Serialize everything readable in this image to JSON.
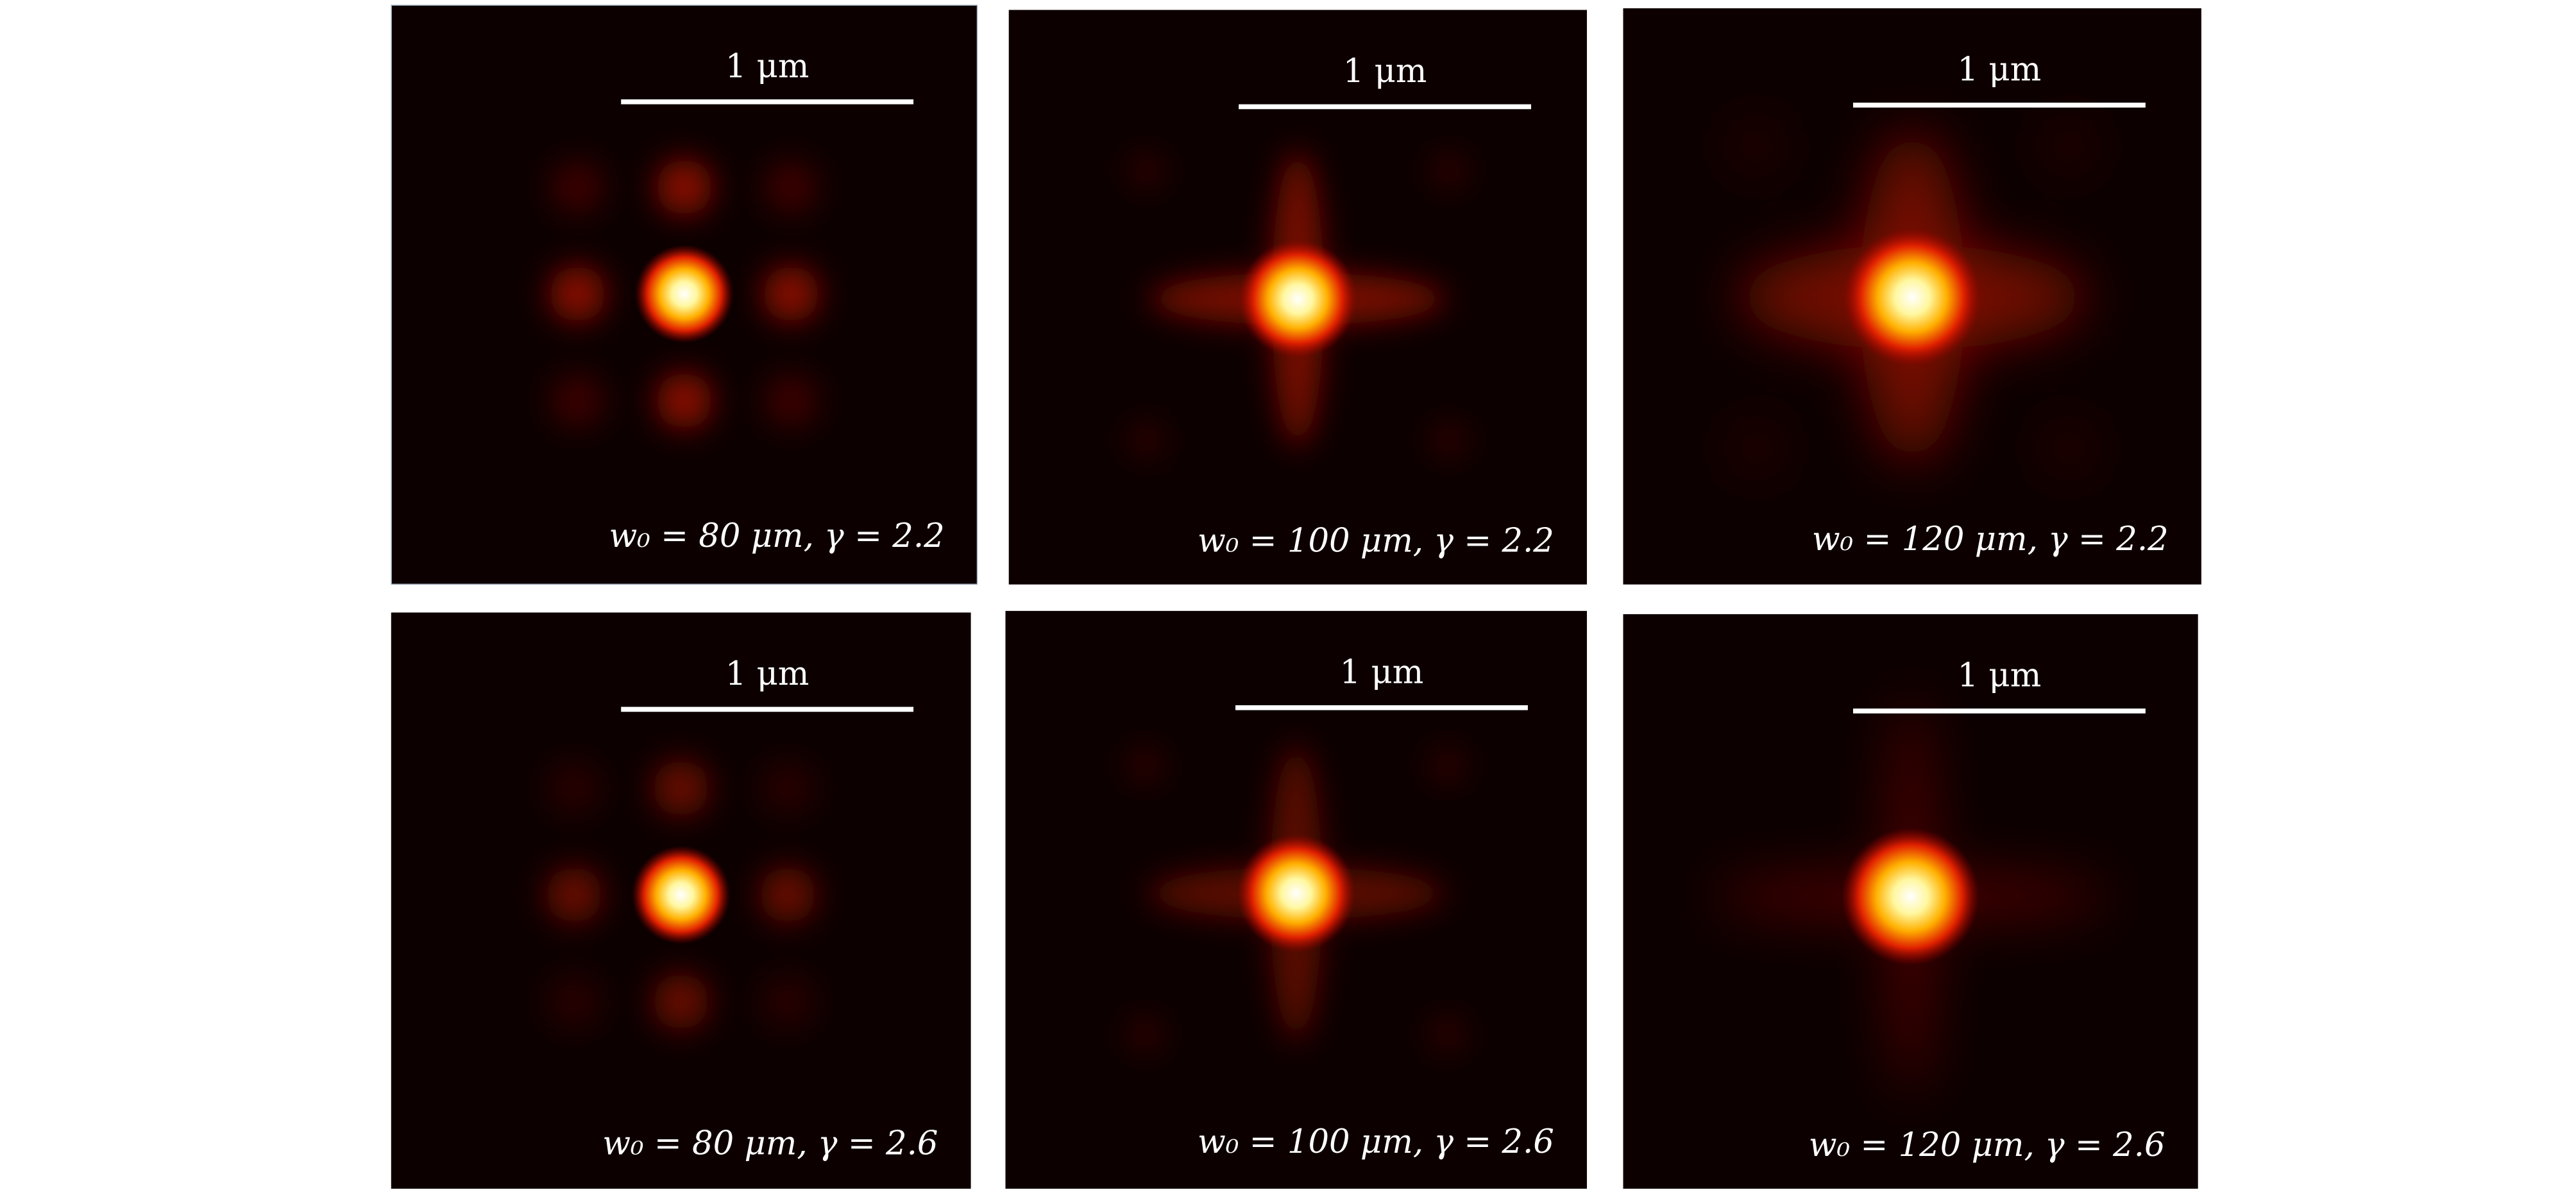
{
  "panels": [
    {
      "scale_label": "1 μm",
      "caption": "w₀ = 80 μm, γ = 2.2"
    },
    {
      "scale_label": "1 μm",
      "caption": "w₀ = 100 μm, γ = 2.2"
    },
    {
      "scale_label": "1 μm",
      "caption": "w₀ = 120 μm, γ = 2.2"
    },
    {
      "scale_label": "1 μm",
      "caption": "w₀ = 80 μm, γ = 2.6"
    },
    {
      "scale_label": "1 μm",
      "caption": "w₀ = 100 μm, γ = 2.6"
    },
    {
      "scale_label": "1 μm",
      "caption": "w₀ = 120 μm, γ = 2.6"
    }
  ]
}
